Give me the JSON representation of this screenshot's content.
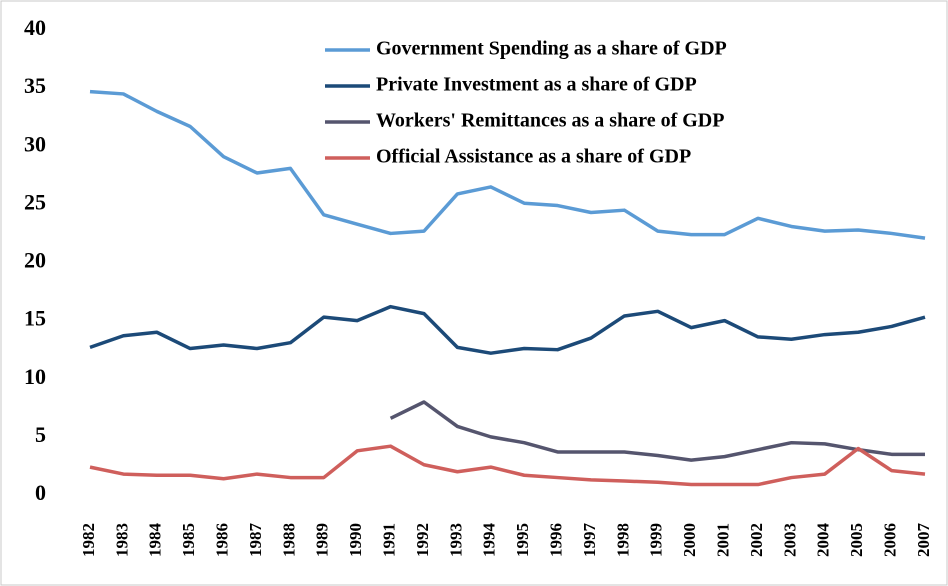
{
  "chart_data": {
    "type": "line",
    "categories": [
      "1982",
      "1983",
      "1984",
      "1985",
      "1986",
      "1987",
      "1988",
      "1989",
      "1990",
      "1991",
      "1992",
      "1993",
      "1994",
      "1995",
      "1996",
      "1997",
      "1998",
      "1999",
      "2000",
      "2001",
      "2002",
      "2003",
      "2004",
      "2005",
      "2006",
      "2007"
    ],
    "series": [
      {
        "name": "Government Spending as a share of GDP",
        "color": "#5b9bd5",
        "values": [
          34.7,
          34.5,
          33,
          31.7,
          29.1,
          27.7,
          28.1,
          24.1,
          23.3,
          22.5,
          22.7,
          25.9,
          26.5,
          25.1,
          24.9,
          24.3,
          24.5,
          22.7,
          22.4,
          22.4,
          23.8,
          23.1,
          22.7,
          22.8,
          22.5,
          22.1
        ]
      },
      {
        "name": "Private Investment as a share of GDP",
        "color": "#1c4a78",
        "values": [
          12.7,
          13.7,
          14.0,
          12.6,
          12.9,
          12.6,
          13.1,
          15.3,
          15.0,
          16.2,
          15.6,
          12.7,
          12.2,
          12.6,
          12.5,
          13.5,
          15.4,
          15.8,
          14.4,
          15.0,
          13.6,
          13.4,
          13.8,
          14.0,
          14.5,
          15.3
        ]
      },
      {
        "name": "Workers' Remittances as a share of GDP",
        "color": "#55556e",
        "values": [
          null,
          null,
          null,
          null,
          null,
          null,
          null,
          null,
          null,
          6.6,
          8.0,
          5.9,
          5.0,
          4.5,
          3.7,
          3.7,
          3.7,
          3.4,
          3.0,
          3.3,
          3.9,
          4.5,
          4.4,
          3.9,
          3.5,
          3.5
        ]
      },
      {
        "name": "Official Assistance as a share of GDP",
        "color": "#cf5f5c",
        "values": [
          2.4,
          1.8,
          1.7,
          1.7,
          1.4,
          1.8,
          1.5,
          1.5,
          3.8,
          4.2,
          2.6,
          2.0,
          2.4,
          1.7,
          1.5,
          1.3,
          1.2,
          1.1,
          0.9,
          0.9,
          0.9,
          1.5,
          1.8,
          4.0,
          2.1,
          1.8
        ]
      }
    ],
    "ylim": [
      0,
      40
    ],
    "yticks": [
      0,
      5,
      10,
      15,
      20,
      25,
      30,
      35,
      40
    ],
    "grid": false
  }
}
